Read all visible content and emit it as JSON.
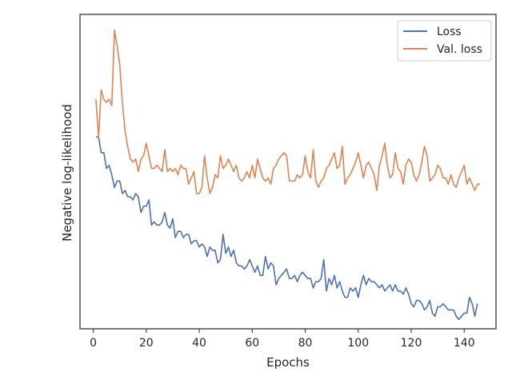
{
  "chart_data": {
    "type": "line",
    "title": "",
    "xlabel": "Epochs",
    "ylabel": "Negative log-likelihood",
    "xlim": [
      -5,
      152
    ],
    "ylim": [
      0,
      100
    ],
    "xticks": [
      0,
      20,
      40,
      60,
      80,
      100,
      120,
      140
    ],
    "yticks_shown": false,
    "grid": false,
    "legend_position": "top-right",
    "series": [
      {
        "name": "Loss",
        "color": "#4c72b0",
        "x_start": 1,
        "values": [
          61,
          61,
          56,
          56,
          51,
          52,
          49,
          45,
          47,
          47,
          43,
          44,
          42,
          42,
          41,
          43,
          42,
          37,
          39,
          39,
          41,
          33,
          34,
          33,
          33,
          34,
          37,
          33,
          32,
          35,
          29,
          31,
          31,
          29,
          30,
          30,
          27,
          28,
          28,
          26,
          27,
          26,
          23,
          26,
          25,
          25,
          21,
          22,
          30,
          24,
          26,
          23,
          25,
          21,
          20,
          20,
          19,
          20,
          22,
          20,
          18,
          20,
          17,
          17,
          23,
          19,
          21,
          20,
          14,
          16,
          17,
          18,
          19,
          16,
          16,
          17,
          15,
          17,
          18,
          17,
          16,
          16,
          13,
          15,
          15,
          16,
          22,
          12,
          16,
          14,
          17,
          13,
          15,
          12,
          10,
          10,
          13,
          12,
          13,
          10,
          14,
          17,
          14,
          16,
          15,
          15,
          14,
          13,
          14,
          12,
          13,
          14,
          12,
          14,
          12,
          12,
          11,
          13,
          11,
          8,
          7,
          9,
          9,
          8,
          6,
          7,
          9,
          5,
          4,
          7,
          7,
          8,
          7,
          6,
          6,
          6,
          4,
          3,
          4,
          5,
          5,
          10,
          8,
          4,
          8
        ]
      },
      {
        "name": "Val. loss",
        "color": "#dd8452",
        "x_start": 1,
        "values": [
          73,
          61,
          76,
          73,
          72,
          73,
          71,
          95,
          90,
          84,
          72,
          63,
          58,
          54,
          53,
          54,
          50,
          54,
          55,
          59,
          55,
          51,
          51,
          52,
          51,
          50,
          57,
          50,
          51,
          50,
          51,
          49,
          52,
          51,
          51,
          46,
          48,
          50,
          43,
          43,
          45,
          55,
          48,
          43,
          45,
          49,
          48,
          55,
          51,
          52,
          54,
          52,
          50,
          52,
          48,
          47,
          48,
          50,
          48,
          52,
          48,
          54,
          51,
          48,
          47,
          48,
          46,
          51,
          52,
          54,
          55,
          56,
          55,
          47,
          47,
          47,
          49,
          48,
          49,
          55,
          50,
          48,
          57,
          47,
          45,
          47,
          48,
          51,
          52,
          54,
          56,
          51,
          52,
          58,
          46,
          48,
          49,
          51,
          53,
          56,
          52,
          48,
          52,
          53,
          51,
          49,
          44,
          52,
          55,
          59,
          52,
          48,
          49,
          56,
          51,
          50,
          46,
          52,
          54,
          53,
          49,
          47,
          49,
          53,
          58,
          55,
          47,
          48,
          49,
          52,
          51,
          48,
          48,
          46,
          49,
          46,
          45,
          48,
          50,
          52,
          46,
          48,
          46,
          44,
          46,
          46
        ]
      }
    ]
  }
}
